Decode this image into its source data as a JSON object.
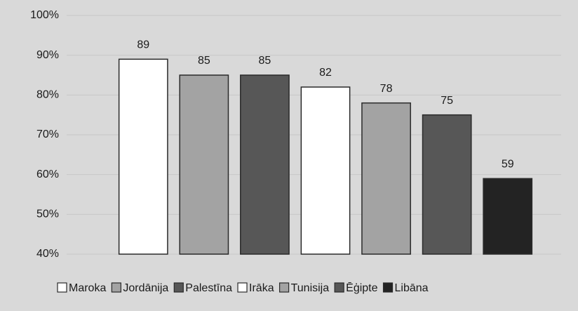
{
  "chart_data": {
    "type": "bar",
    "categories": [
      "Maroka",
      "Jordānija",
      "Palestīna",
      "Irāka",
      "Tunisija",
      "Ēģipte",
      "Libāna"
    ],
    "values": [
      89,
      85,
      85,
      82,
      78,
      75,
      59
    ],
    "colors": [
      "#ffffff",
      "#a3a3a3",
      "#575757",
      "#ffffff",
      "#a3a3a3",
      "#575757",
      "#232323"
    ],
    "ylim": [
      40,
      100
    ],
    "yticks": [
      {
        "value": 40,
        "label": "40%"
      },
      {
        "value": 50,
        "label": "50%"
      },
      {
        "value": 60,
        "label": "60%"
      },
      {
        "value": 70,
        "label": "70%"
      },
      {
        "value": 80,
        "label": "80%"
      },
      {
        "value": 90,
        "label": "90%"
      },
      {
        "value": 100,
        "label": "100%"
      }
    ],
    "grid": true
  }
}
